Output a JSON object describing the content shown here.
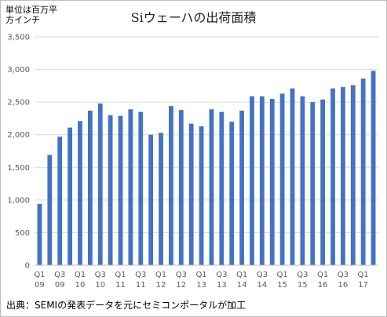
{
  "chart_data": {
    "type": "bar",
    "title": "Siウェーハの出荷面積",
    "ylabel_lines": [
      "単位は百万平",
      "方インチ"
    ],
    "source": "出典：SEMIの発表データを元にセミコンポータルが加工",
    "ylim": [
      0,
      3500
    ],
    "yticks": [
      0,
      500,
      1000,
      1500,
      2000,
      2500,
      3000,
      3500
    ],
    "ytick_labels": [
      "0",
      "500",
      "1,000",
      "1,500",
      "2,000",
      "2,500",
      "3,000",
      "3,500"
    ],
    "grid": true,
    "bar_color": "#4472c4",
    "categories": [
      "Q1 09",
      "Q2 09",
      "Q3 09",
      "Q4 09",
      "Q1 10",
      "Q2 10",
      "Q3 10",
      "Q4 10",
      "Q1 11",
      "Q2 11",
      "Q3 11",
      "Q4 11",
      "Q1 12",
      "Q2 12",
      "Q3 12",
      "Q4 12",
      "Q1 13",
      "Q2 13",
      "Q3 13",
      "Q4 13",
      "Q1 14",
      "Q2 14",
      "Q3 14",
      "Q4 14",
      "Q1 15",
      "Q2 15",
      "Q3 15",
      "Q4 15",
      "Q1 16",
      "Q2 16",
      "Q3 16",
      "Q4 16",
      "Q1 17",
      "Q2 17"
    ],
    "x_labels": [
      {
        "index": 0,
        "line1": "Q1",
        "line2": "09"
      },
      {
        "index": 2,
        "line1": "Q3",
        "line2": "09"
      },
      {
        "index": 4,
        "line1": "Q1",
        "line2": "10"
      },
      {
        "index": 6,
        "line1": "Q3",
        "line2": "10"
      },
      {
        "index": 8,
        "line1": "Q1",
        "line2": "11"
      },
      {
        "index": 10,
        "line1": "Q3",
        "line2": "11"
      },
      {
        "index": 12,
        "line1": "Q1",
        "line2": "12"
      },
      {
        "index": 14,
        "line1": "Q3",
        "line2": "12"
      },
      {
        "index": 16,
        "line1": "Q1",
        "line2": "13"
      },
      {
        "index": 18,
        "line1": "Q3",
        "line2": "13"
      },
      {
        "index": 20,
        "line1": "Q1",
        "line2": "14"
      },
      {
        "index": 22,
        "line1": "Q3",
        "line2": "14"
      },
      {
        "index": 24,
        "line1": "Q1",
        "line2": "15"
      },
      {
        "index": 26,
        "line1": "Q3",
        "line2": "15"
      },
      {
        "index": 28,
        "line1": "Q1",
        "line2": "16"
      },
      {
        "index": 30,
        "line1": "Q3",
        "line2": "16"
      },
      {
        "index": 32,
        "line1": "Q1",
        "line2": "17"
      }
    ],
    "values": [
      940,
      1690,
      1970,
      2110,
      2210,
      2370,
      2480,
      2300,
      2290,
      2390,
      2350,
      2000,
      2030,
      2440,
      2380,
      2170,
      2130,
      2390,
      2350,
      2200,
      2370,
      2590,
      2590,
      2550,
      2630,
      2710,
      2590,
      2500,
      2540,
      2710,
      2730,
      2760,
      2860,
      2980
    ]
  }
}
